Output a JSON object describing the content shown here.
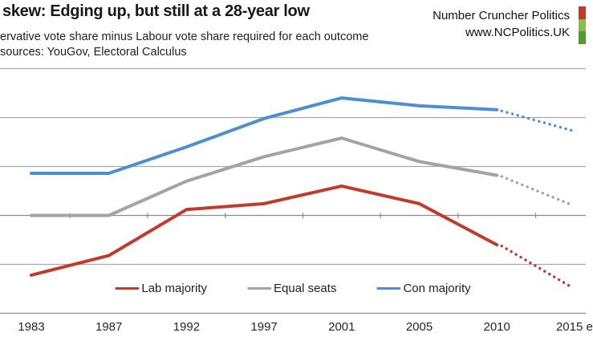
{
  "header": {
    "title": "skew: Edging up, but still at a 28-year low",
    "subtitle": "ervative vote share minus Labour vote share required for each outcome",
    "sources": "sources: YouGov, Electoral Calculus",
    "brand_name": "Number Cruncher Politics",
    "brand_url": "www.NCPolitics.UK",
    "logo_colors": [
      "#c03a2b",
      "#8cbb4a",
      "#4e9a31"
    ]
  },
  "chart_data": {
    "type": "line",
    "x": [
      1983,
      1987,
      1992,
      1997,
      2001,
      2005,
      2010,
      2015
    ],
    "x_tick_labels": [
      "1983",
      "1987",
      "1992",
      "1997",
      "2001",
      "2005",
      "2010",
      "2015 e"
    ],
    "forecast_from_index": 6,
    "series": [
      {
        "name": "Lab majority",
        "color": "#c13a2b",
        "values": [
          -6.1,
          -4.1,
          0.6,
          1.2,
          3.0,
          1.2,
          -3.0,
          -7.3
        ]
      },
      {
        "name": "Equal seats",
        "color": "#a3a3a3",
        "values": [
          0.0,
          0.0,
          3.5,
          6.0,
          7.9,
          5.5,
          4.1,
          1.1
        ]
      },
      {
        "name": "Con majority",
        "color": "#4d8ed2",
        "values": [
          4.3,
          4.3,
          7.0,
          9.9,
          12.0,
          11.2,
          10.8,
          8.7
        ]
      }
    ],
    "ylabel": "",
    "xlabel": "",
    "ylim": [
      -10,
      15
    ],
    "y_gridline_values": [
      15,
      10,
      5,
      0,
      -5,
      -10
    ],
    "zero_axis_value": 0,
    "grid": true,
    "legend_position": "bottom-center",
    "note": "dotted segment after 2010 = estimate"
  }
}
